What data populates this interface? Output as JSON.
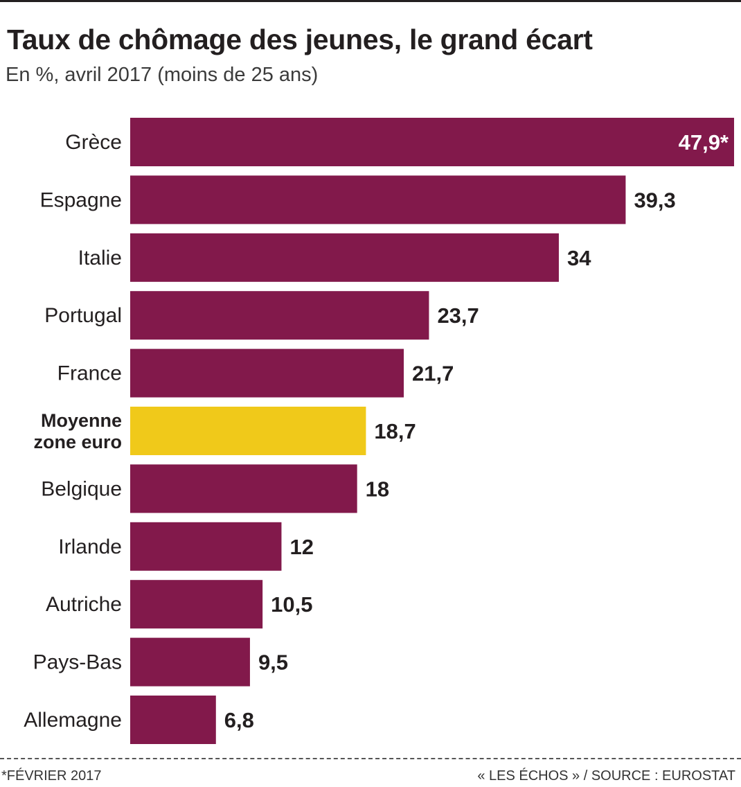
{
  "title": "Taux de chômage des jeunes, le grand écart",
  "subtitle": "En %, avril 2017 (moins de 25 ans)",
  "footnote": "*FÉVRIER 2017",
  "source": "« LES ÉCHOS » / SOURCE : EUROSTAT",
  "chart_data": {
    "type": "bar",
    "orientation": "horizontal",
    "title": "Taux de chômage des jeunes, le grand écart",
    "subtitle": "En %, avril 2017 (moins de 25 ans)",
    "xlim": [
      0,
      47.9
    ],
    "grid": false,
    "categories": [
      "Grèce",
      "Espagne",
      "Italie",
      "Portugal",
      "France",
      "Moyenne zone euro",
      "Belgique",
      "Irlande",
      "Autriche",
      "Pays-Bas",
      "Allemagne"
    ],
    "category_lines": [
      [
        "Grèce"
      ],
      [
        "Espagne"
      ],
      [
        "Italie"
      ],
      [
        "Portugal"
      ],
      [
        "France"
      ],
      [
        "Moyenne",
        "zone euro"
      ],
      [
        "Belgique"
      ],
      [
        "Irlande"
      ],
      [
        "Autriche"
      ],
      [
        "Pays-Bas"
      ],
      [
        "Allemagne"
      ]
    ],
    "values": [
      47.9,
      39.3,
      34,
      23.7,
      21.7,
      18.7,
      18,
      12,
      10.5,
      9.5,
      6.8
    ],
    "data_labels": [
      "47,9*",
      "39,3",
      "34",
      "23,7",
      "21,7",
      "18,7",
      "18",
      "12",
      "10,5",
      "9,5",
      "6,8"
    ],
    "highlight": "Moyenne zone euro",
    "colors": {
      "bar": "#82194b",
      "highlight": "#f0c91a",
      "label": "#231f20",
      "label_inside": "#ffffff"
    }
  }
}
